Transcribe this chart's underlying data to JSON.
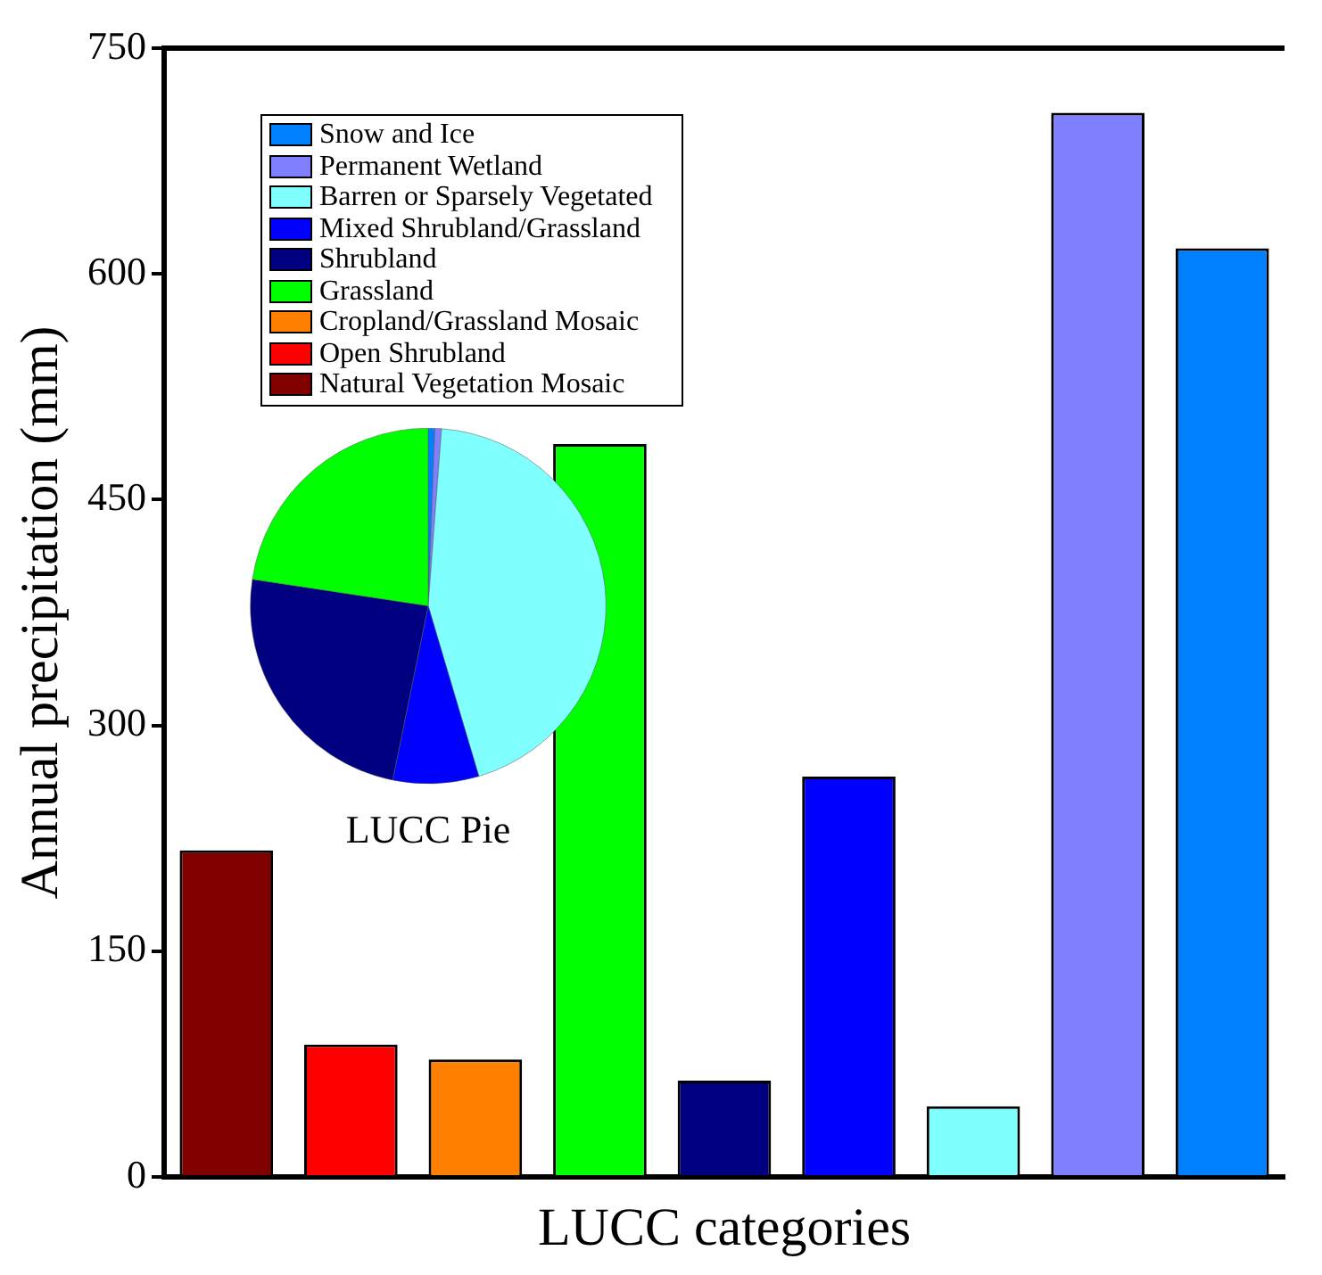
{
  "chart_data": [
    {
      "type": "bar",
      "xlabel": "LUCC categories",
      "ylabel": "Annual precipitation (mm)",
      "categories": [
        null,
        null,
        null,
        null,
        null,
        null,
        null,
        null,
        null
      ],
      "series": [
        {
          "name": "Natural Vegetation Mosaic",
          "color": "#800000",
          "values": [
            217,
            null,
            null,
            null,
            null,
            null,
            null,
            null,
            null
          ]
        },
        {
          "name": "Open Shrubland",
          "color": "#ff0000",
          "values": [
            null,
            88,
            null,
            null,
            null,
            null,
            null,
            null,
            null
          ]
        },
        {
          "name": "Cropland/Grassland Mosaic",
          "color": "#ff8000",
          "values": [
            null,
            null,
            78,
            null,
            null,
            null,
            null,
            null,
            null
          ]
        },
        {
          "name": "Grassland",
          "color": "#00ff00",
          "values": [
            null,
            null,
            null,
            487,
            null,
            null,
            null,
            null,
            null
          ]
        },
        {
          "name": "Shrubland",
          "color": "#000080",
          "values": [
            null,
            null,
            null,
            null,
            64,
            null,
            null,
            null,
            null
          ]
        },
        {
          "name": "Mixed Shrubland/Grassland",
          "color": "#0000ff",
          "values": [
            null,
            null,
            null,
            null,
            null,
            266,
            null,
            null,
            null
          ]
        },
        {
          "name": "Barren or Sparsely Vegetated",
          "color": "#80ffff",
          "values": [
            null,
            null,
            null,
            null,
            null,
            null,
            47,
            null,
            null
          ]
        },
        {
          "name": "Permanent Wetland",
          "color": "#8080ff",
          "values": [
            null,
            null,
            null,
            null,
            null,
            null,
            null,
            707,
            null
          ]
        },
        {
          "name": "Snow and Ice",
          "color": "#0080ff",
          "values": [
            null,
            null,
            null,
            null,
            null,
            null,
            null,
            null,
            617
          ]
        }
      ],
      "ylim": [
        0,
        750
      ],
      "yticks": [
        0,
        150,
        300,
        450,
        600,
        750
      ],
      "tick_labels": "y",
      "legend": "top left",
      "grid": false
    },
    {
      "type": "pie",
      "title": "LUCC Pie",
      "categories": [
        null,
        null,
        null,
        null,
        null,
        null
      ],
      "values": [
        0.6,
        0.6,
        44.2,
        7.8,
        24.2,
        22.6
      ],
      "colors": [
        "#0080ff",
        "#8080ff",
        "#80ffff",
        "#0000ff",
        "#000080",
        "#00ff00"
      ],
      "legend": false
    }
  ]
}
